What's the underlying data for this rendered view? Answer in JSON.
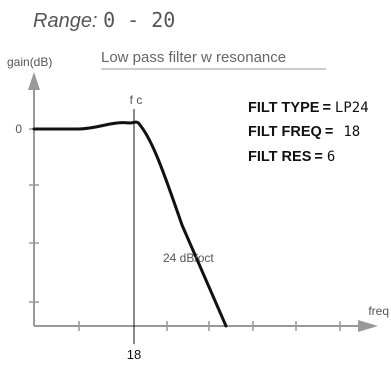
{
  "header": {
    "range_prefix": "Range: ",
    "range_value": "0 - 20"
  },
  "graph": {
    "title": "Low pass filter w resonance",
    "y_axis_label": "gain(dB)",
    "x_axis_label": "freq",
    "zero_label": "0",
    "cutoff_label": "f c",
    "cutoff_value": "18",
    "slope_label": "24 dB/oct"
  },
  "params": [
    {
      "name": "FILT TYPE",
      "value": "LP24"
    },
    {
      "name": "FILT FREQ",
      "value": "18"
    },
    {
      "name": "FILT RES",
      "value": "6"
    }
  ],
  "colors": {
    "axis": "#999999",
    "curve": "#111111",
    "text": "#555555"
  }
}
